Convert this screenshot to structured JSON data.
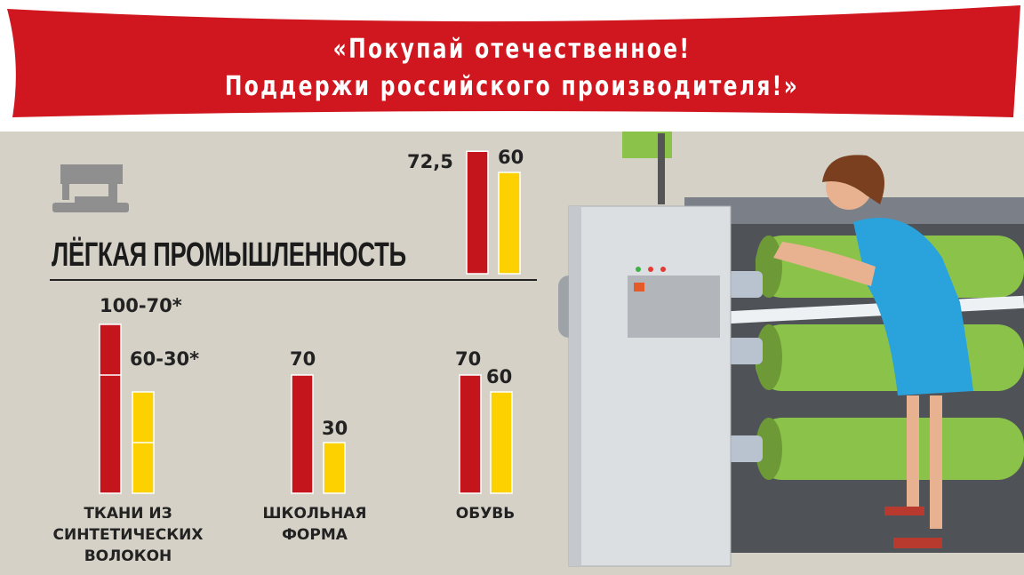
{
  "banner": {
    "line1": "«Покупай отечественное!",
    "line2": "Поддержи российского производителя!»",
    "color": "#d0161e"
  },
  "icon": "sewing-machine-icon",
  "colors": {
    "red": "#c4141c",
    "yellow": "#fdd000",
    "background": "#d5d1c7"
  },
  "chart_data": {
    "type": "bar",
    "title": "ЛЁГКАЯ ПРОМЫШЛЕННОСТЬ",
    "overall": {
      "values": [
        72.5,
        60
      ],
      "labels": [
        "72,5",
        "60"
      ]
    },
    "categories": [
      {
        "label": [
          "ТКАНИ ИЗ",
          "СИНТЕТИЧЕСКИХ",
          "ВОЛОКОН"
        ],
        "values": [
          [
            100,
            70
          ],
          [
            60,
            30
          ]
        ],
        "labels": [
          "100-70*",
          "60-30*"
        ]
      },
      {
        "label": [
          "ШКОЛЬНАЯ",
          "ФОРМА"
        ],
        "values": [
          70,
          30
        ],
        "labels": [
          "70",
          "30"
        ]
      },
      {
        "label": [
          "ОБУВЬ"
        ],
        "values": [
          70,
          60
        ],
        "labels": [
          "70",
          "60"
        ]
      }
    ]
  }
}
